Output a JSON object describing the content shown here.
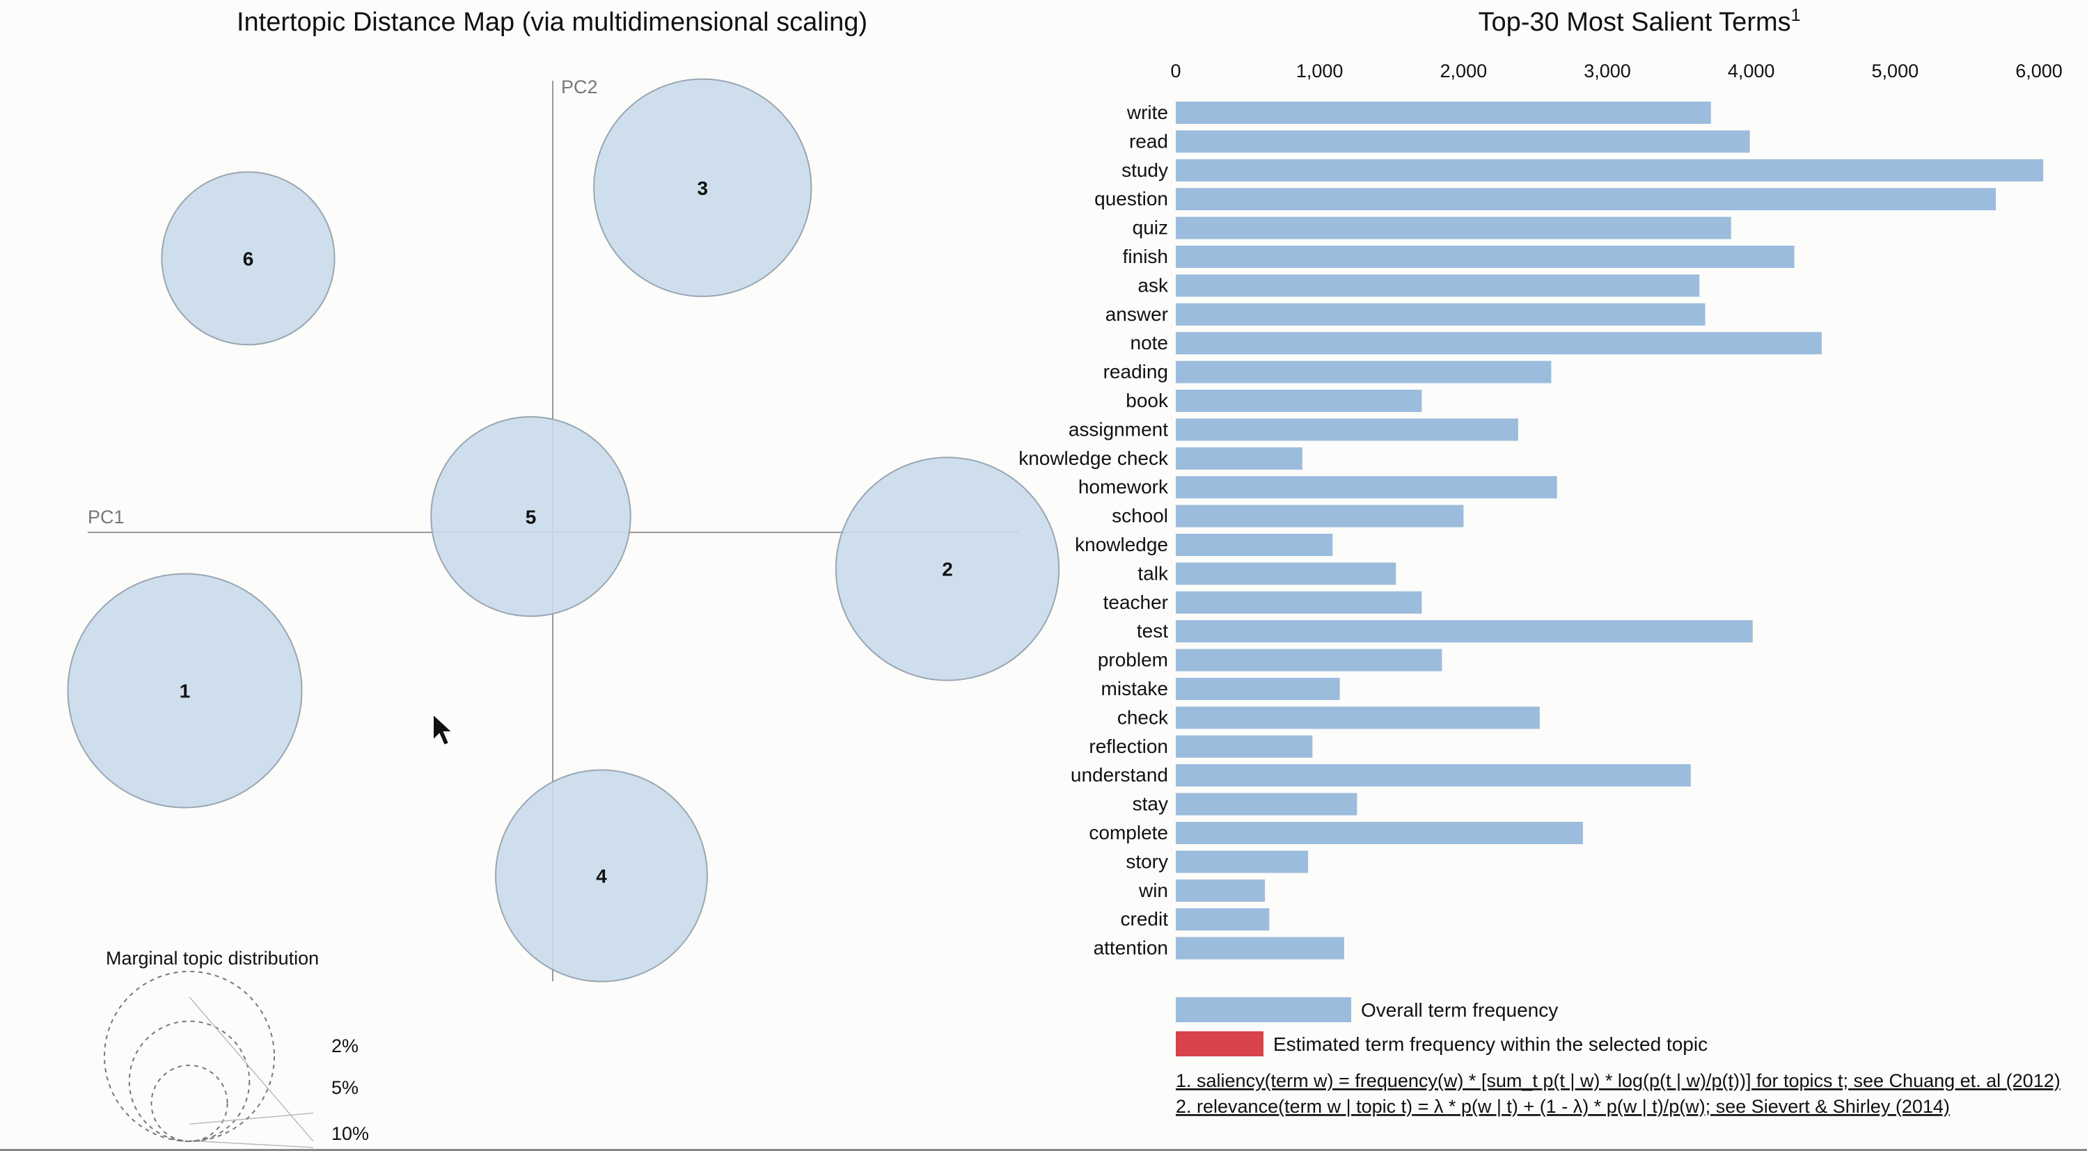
{
  "chart_data": [
    {
      "type": "scatter",
      "title": "Intertopic Distance Map (via multidimensional scaling)",
      "xlabel": "PC1",
      "ylabel": "PC2",
      "topics": [
        {
          "label": "1",
          "pc1": -0.302,
          "pc2": -0.13,
          "size_pct": 11.0
        },
        {
          "label": "2",
          "pc1": 0.324,
          "pc2": -0.03,
          "size_pct": 10.0
        },
        {
          "label": "3",
          "pc1": 0.123,
          "pc2": 0.283,
          "size_pct": 9.5
        },
        {
          "label": "4",
          "pc1": 0.04,
          "pc2": -0.282,
          "size_pct": 9.0
        },
        {
          "label": "5",
          "pc1": -0.018,
          "pc2": 0.013,
          "size_pct": 8.0
        },
        {
          "label": "6",
          "pc1": -0.25,
          "pc2": 0.225,
          "size_pct": 6.0
        }
      ],
      "xlim": [
        -0.4,
        0.4
      ],
      "ylim": [
        -0.4,
        0.4
      ],
      "marginal": {
        "title": "Marginal topic distribution",
        "levels": [
          {
            "label": "2%",
            "pct": 2
          },
          {
            "label": "5%",
            "pct": 5
          },
          {
            "label": "10%",
            "pct": 10
          }
        ]
      }
    },
    {
      "type": "bar",
      "title": "Top-30 Most Salient Terms",
      "title_sup": "1",
      "orientation": "horizontal",
      "xlim": [
        0,
        6000
      ],
      "ticks": [
        {
          "value": 0,
          "label": "0"
        },
        {
          "value": 1000,
          "label": "1,000"
        },
        {
          "value": 2000,
          "label": "2,000"
        },
        {
          "value": 3000,
          "label": "3,000"
        },
        {
          "value": 4000,
          "label": "4,000"
        },
        {
          "value": 5000,
          "label": "5,000"
        },
        {
          "value": 6000,
          "label": "6,000"
        }
      ],
      "categories": [
        "write",
        "read",
        "study",
        "question",
        "quiz",
        "finish",
        "ask",
        "answer",
        "note",
        "reading",
        "book",
        "assignment",
        "knowledge check",
        "homework",
        "school",
        "knowledge",
        "talk",
        "teacher",
        "test",
        "problem",
        "mistake",
        "check",
        "reflection",
        "understand",
        "stay",
        "complete",
        "story",
        "win",
        "credit",
        "attention"
      ],
      "series": [
        {
          "name": "Overall term frequency",
          "color": "#9bbcdc",
          "values": [
            3720,
            3990,
            6030,
            5700,
            3860,
            4300,
            3640,
            3680,
            4490,
            2610,
            1710,
            2380,
            880,
            2650,
            2000,
            1090,
            1530,
            1710,
            4010,
            1850,
            1140,
            2530,
            950,
            3580,
            1260,
            2830,
            920,
            620,
            650,
            1170
          ]
        }
      ],
      "legend": [
        {
          "label": "Overall term frequency",
          "color": "#9bbcdc"
        },
        {
          "label": "Estimated term frequency within the selected topic",
          "color": "#d7424b"
        }
      ],
      "notes": [
        "1. saliency(term w) = frequency(w) * [sum_t p(t | w) * log(p(t | w)/p(t))] for topics t; see Chuang et. al (2012)",
        "2. relevance(term w | topic t) = λ * p(w | t) + (1 - λ) * p(w | t)/p(w); see Sievert & Shirley (2014)"
      ]
    }
  ]
}
